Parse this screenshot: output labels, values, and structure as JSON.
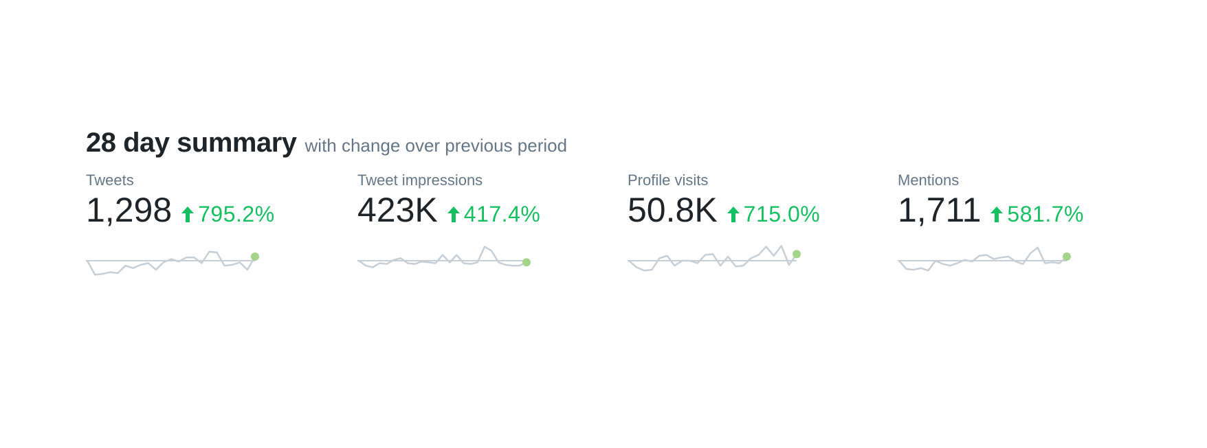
{
  "summary": {
    "title": "28 day summary",
    "subtitle": "with change over previous period"
  },
  "colors": {
    "positive": "#17bf63",
    "sparkline_line": "#c7cfd6",
    "sparkline_baseline": "#c7cfd6",
    "sparkline_endpoint": "#a4d48a"
  },
  "metrics": [
    {
      "label": "Tweets",
      "value": "1,298",
      "change": "795.2%",
      "change_icon": "arrow-up-icon",
      "trend": [
        0.0,
        -0.85,
        -0.8,
        -0.7,
        -0.75,
        -0.3,
        -0.45,
        -0.25,
        -0.15,
        -0.55,
        -0.1,
        0.1,
        -0.05,
        0.2,
        0.2,
        -0.15,
        0.55,
        0.5,
        -0.3,
        -0.25,
        -0.1,
        -0.55,
        0.25
      ]
    },
    {
      "label": "Tweet impressions",
      "value": "423K",
      "change": "417.4%",
      "change_icon": "arrow-up-icon",
      "trend": [
        0.0,
        -0.3,
        -0.4,
        -0.15,
        -0.2,
        0.05,
        0.15,
        -0.15,
        -0.2,
        -0.05,
        -0.1,
        -0.15,
        0.35,
        -0.1,
        0.35,
        -0.15,
        -0.2,
        -0.1,
        0.85,
        0.6,
        -0.1,
        -0.25,
        -0.3,
        -0.3,
        -0.1
      ]
    },
    {
      "label": "Profile visits",
      "value": "50.8K",
      "change": "715.0%",
      "change_icon": "arrow-up-icon",
      "trend": [
        0.0,
        -0.4,
        -0.6,
        -0.55,
        0.15,
        0.3,
        -0.3,
        0.0,
        0.0,
        -0.15,
        0.35,
        0.4,
        -0.3,
        0.25,
        -0.35,
        -0.3,
        0.15,
        0.35,
        0.85,
        0.3,
        0.9,
        -0.25,
        0.4
      ]
    },
    {
      "label": "Mentions",
      "value": "1,711",
      "change": "581.7%",
      "change_icon": "arrow-up-icon",
      "trend": [
        0.0,
        -0.5,
        -0.55,
        -0.45,
        -0.6,
        0.0,
        -0.2,
        -0.3,
        -0.15,
        0.05,
        -0.05,
        0.3,
        0.35,
        0.1,
        0.2,
        0.25,
        -0.05,
        -0.2,
        0.45,
        0.8,
        -0.15,
        -0.1,
        -0.15,
        0.25
      ]
    }
  ]
}
